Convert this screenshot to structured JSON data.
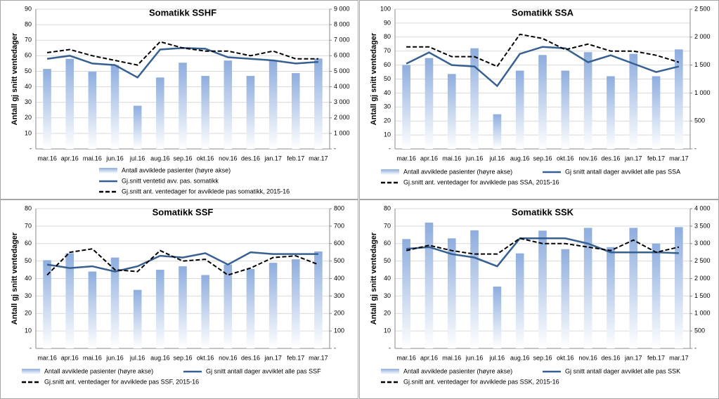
{
  "chart_data": [
    {
      "type": "bar-line",
      "title": "Somatikk SSHF",
      "y_label": "Antall gj snitt ventedager",
      "categories": [
        "mar.16",
        "apr.16",
        "mai.16",
        "jun.16",
        "jul.16",
        "aug.16",
        "sep.16",
        "okt.16",
        "nov.16",
        "des.16",
        "jan.17",
        "feb.17",
        "mar.17"
      ],
      "ylim": [
        0,
        90
      ],
      "yticks": [
        {
          "value": 0,
          "label": "-"
        },
        10,
        20,
        30,
        40,
        50,
        60,
        70,
        80,
        90
      ],
      "y2lim": [
        0,
        9000
      ],
      "y2ticks": [
        {
          "value": 0,
          "label": "-"
        },
        {
          "value": 1000,
          "label": "1 000"
        },
        {
          "value": 2000,
          "label": "2 000"
        },
        {
          "value": 3000,
          "label": "3 000"
        },
        {
          "value": 4000,
          "label": "4 000"
        },
        {
          "value": 5000,
          "label": "5 000"
        },
        {
          "value": 6000,
          "label": "6 000"
        },
        {
          "value": 7000,
          "label": "7 000"
        },
        {
          "value": 8000,
          "label": "8 000"
        },
        {
          "value": 9000,
          "label": "9 000"
        }
      ],
      "grid": true,
      "series": [
        {
          "name": "Antall avviklede pasienter (høyre akse)",
          "type": "bar",
          "axis": "y2",
          "color": "#8eadde",
          "values": [
            5150,
            5800,
            4970,
            5400,
            2780,
            4600,
            5550,
            4700,
            5690,
            4700,
            5700,
            4880,
            5820
          ]
        },
        {
          "name": "Gj.snitt ventetid avv. pas. somatikk",
          "type": "line",
          "color": "#376092",
          "values": [
            58,
            60,
            55,
            54,
            46,
            64,
            65,
            64.5,
            59,
            58,
            57,
            55,
            56
          ]
        },
        {
          "name": "Gj.snitt ant. ventedager for avviklede pas somatikk, 2015-16",
          "type": "line",
          "style": "dashed",
          "color": "#000000",
          "values": [
            62,
            64,
            60,
            57,
            54,
            69,
            65,
            63,
            63,
            60,
            63,
            58,
            58
          ]
        }
      ]
    },
    {
      "type": "bar-line",
      "title": "Somatikk SSA",
      "y_label": "Antall gj snitt ventedager",
      "categories": [
        "mar.16",
        "apr.16",
        "mai.16",
        "jun.16",
        "jul.16",
        "aug.16",
        "sep.16",
        "okt.16",
        "nov.16",
        "des.16",
        "jan.17",
        "feb.17",
        "mar.17"
      ],
      "ylim": [
        0,
        100
      ],
      "yticks": [
        {
          "value": 0,
          "label": "-"
        },
        10,
        20,
        30,
        40,
        50,
        60,
        70,
        80,
        90,
        100
      ],
      "y2lim": [
        0,
        2500
      ],
      "y2ticks": [
        {
          "value": 0,
          "label": "-"
        },
        500,
        {
          "value": 1000,
          "label": "1 000"
        },
        {
          "value": 1500,
          "label": "1 500"
        },
        {
          "value": 2000,
          "label": "2 000"
        },
        {
          "value": 2500,
          "label": "2 500"
        }
      ],
      "grid": true,
      "series": [
        {
          "name": "Antall avviklede pasienter (høyre akse)",
          "type": "bar",
          "axis": "y2",
          "color": "#8eadde",
          "values": [
            1500,
            1625,
            1340,
            1800,
            620,
            1400,
            1680,
            1400,
            1730,
            1300,
            1700,
            1300,
            1780
          ]
        },
        {
          "name": "Gj snitt antall dager avviklet alle pas SSA",
          "type": "line",
          "color": "#376092",
          "values": [
            61,
            69,
            60,
            59,
            45,
            68,
            73,
            72,
            62,
            67,
            61,
            55,
            59
          ]
        },
        {
          "name": "Gj.snitt ant. ventedager for avviklede pas SSA, 2015-16",
          "type": "line",
          "style": "dashed",
          "color": "#000000",
          "values": [
            73,
            73,
            66,
            66,
            59,
            82,
            79,
            71,
            75,
            70,
            70,
            67,
            62
          ]
        }
      ]
    },
    {
      "type": "bar-line",
      "title": "Somatikk SSF",
      "y_label": "Antall gj snitt ventedager",
      "categories": [
        "mar.16",
        "apr.16",
        "mai.16",
        "jun.16",
        "jul.16",
        "aug.16",
        "sep.16",
        "okt.16",
        "nov.16",
        "des.16",
        "jan.17",
        "feb.17",
        "mar.17"
      ],
      "ylim": [
        0,
        80
      ],
      "yticks": [
        {
          "value": 0,
          "label": "-"
        },
        10,
        20,
        30,
        40,
        50,
        60,
        70,
        80
      ],
      "y2lim": [
        0,
        800
      ],
      "y2ticks": [
        {
          "value": 0,
          "label": "-"
        },
        100,
        200,
        300,
        400,
        500,
        600,
        700,
        800
      ],
      "grid": true,
      "series": [
        {
          "name": "Antall avviklede pasienter (høyre akse)",
          "type": "bar",
          "axis": "y2",
          "color": "#8eadde",
          "values": [
            505,
            545,
            440,
            520,
            335,
            450,
            470,
            420,
            480,
            455,
            490,
            510,
            555
          ]
        },
        {
          "name": "Gj snitt antall dager avviklet alle pas SSF",
          "type": "line",
          "color": "#376092",
          "values": [
            48,
            46,
            47,
            44,
            47,
            53,
            52,
            54.5,
            48,
            55,
            54,
            54,
            54
          ]
        },
        {
          "name": "Gj.snitt ant. ventedager for avviklede pas SSF, 2015-16",
          "type": "line",
          "style": "dashed",
          "color": "#000000",
          "values": [
            42,
            55,
            57,
            45,
            44,
            56,
            50,
            51,
            42,
            46,
            52,
            53,
            48
          ]
        }
      ]
    },
    {
      "type": "bar-line",
      "title": "Somatikk SSK",
      "y_label": "Antall gj snitt ventedager",
      "categories": [
        "mar.16",
        "apr.16",
        "mai.16",
        "jun.16",
        "jul.16",
        "aug.16",
        "sep.16",
        "okt.16",
        "nov.16",
        "des.16",
        "jan.17",
        "feb.17",
        "mar.17"
      ],
      "ylim": [
        0,
        80
      ],
      "yticks": [
        {
          "value": 0,
          "label": "-"
        },
        10,
        20,
        30,
        40,
        50,
        60,
        70,
        80
      ],
      "y2lim": [
        0,
        4000
      ],
      "y2ticks": [
        {
          "value": 0,
          "label": "-"
        },
        500,
        {
          "value": 1000,
          "label": "1 000"
        },
        {
          "value": 1500,
          "label": "1 500"
        },
        {
          "value": 2000,
          "label": "2 000"
        },
        {
          "value": 2500,
          "label": "2 500"
        },
        {
          "value": 3000,
          "label": "3 000"
        },
        {
          "value": 3500,
          "label": "3 500"
        },
        {
          "value": 4000,
          "label": "4 000"
        }
      ],
      "grid": true,
      "series": [
        {
          "name": "Antall avviklede pasienter (høyre akse)",
          "type": "bar",
          "axis": "y2",
          "color": "#8eadde",
          "values": [
            3130,
            3600,
            3150,
            3380,
            1770,
            2720,
            3370,
            2840,
            3450,
            2900,
            3450,
            3000,
            3470
          ]
        },
        {
          "name": "Gj snitt antall dager avviklet alle pas SSK",
          "type": "line",
          "color": "#376092",
          "values": [
            57,
            58,
            54,
            52,
            47,
            63,
            63,
            63,
            60,
            55,
            55,
            55,
            54.5
          ]
        },
        {
          "name": "Gj.snitt ant. ventedager for avviklede pas SSK, 2015-16",
          "type": "line",
          "style": "dashed",
          "color": "#000000",
          "values": [
            56,
            59,
            56,
            54,
            54,
            63,
            60,
            60,
            58,
            56,
            62,
            55,
            58
          ]
        }
      ]
    }
  ]
}
